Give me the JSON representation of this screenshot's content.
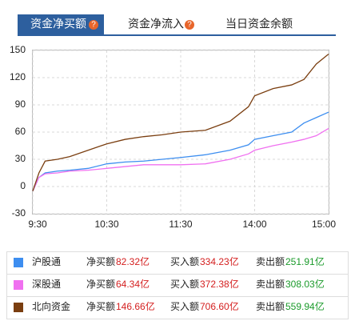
{
  "tabs": [
    "资金净买额",
    "资金净流入",
    "当日资金余额"
  ],
  "help_icon": "?",
  "chart_data": {
    "type": "line",
    "xlim": [
      0,
      240
    ],
    "xticks": [
      {
        "value": 0,
        "label": "9:30"
      },
      {
        "value": 60,
        "label": "10:30"
      },
      {
        "value": 120,
        "label": "11:30"
      },
      {
        "value": 180,
        "label": "14:00"
      },
      {
        "value": 240,
        "label": "15:00"
      }
    ],
    "ylim": [
      -30,
      150
    ],
    "yticks": [
      150,
      120,
      90,
      60,
      30,
      0,
      -30
    ],
    "grid": true,
    "x": [
      0,
      5,
      10,
      20,
      30,
      45,
      60,
      75,
      90,
      105,
      120,
      140,
      160,
      175,
      180,
      195,
      210,
      220,
      230,
      240
    ],
    "series": [
      {
        "name": "沪股通",
        "color": "#3d8ef0",
        "values": [
          -5,
          10,
          15,
          17,
          18,
          20,
          25,
          27,
          28,
          30,
          32,
          35,
          40,
          46,
          52,
          56,
          60,
          70,
          76,
          82
        ]
      },
      {
        "name": "深股通",
        "color": "#f070f0",
        "values": [
          -5,
          10,
          14,
          15,
          17,
          18,
          20,
          22,
          24,
          24,
          24,
          25,
          30,
          36,
          40,
          45,
          49,
          52,
          56,
          64
        ]
      },
      {
        "name": "北向资金",
        "color": "#7a3e10",
        "values": [
          -5,
          15,
          28,
          30,
          33,
          40,
          47,
          52,
          55,
          57,
          60,
          62,
          72,
          88,
          100,
          108,
          112,
          118,
          135,
          146
        ]
      }
    ]
  },
  "summary": {
    "labels": [
      "净买额",
      "买入额",
      "卖出额"
    ],
    "rows": [
      [
        "82.32亿",
        "334.23亿",
        "251.91亿"
      ],
      [
        "64.34亿",
        "372.38亿",
        "308.03亿"
      ],
      [
        "146.66亿",
        "706.60亿",
        "559.94亿"
      ]
    ]
  }
}
